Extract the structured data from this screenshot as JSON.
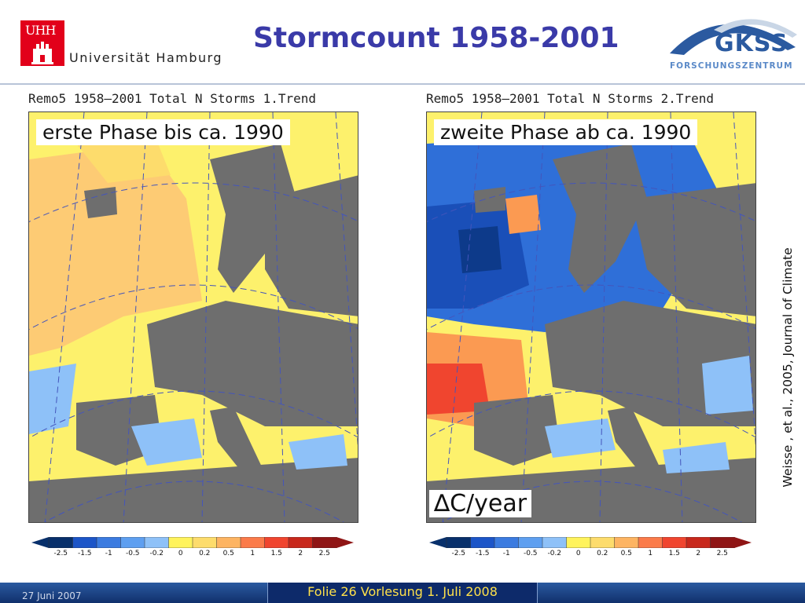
{
  "header": {
    "title": "Stormcount 1958-2001",
    "university": {
      "logo_text": "UHH",
      "name": "Universität Hamburg"
    },
    "institute": {
      "name": "GKSS",
      "subtitle": "FORSCHUNGSZENTRUM"
    }
  },
  "panels": [
    {
      "caption": "Remo5 1958—2001 Total N Storms 1.Trend",
      "phase_label": "erste Phase bis ca. 1990",
      "overlay_label": "",
      "trend_level": "positive"
    },
    {
      "caption": "Remo5 1958—2001 Total N Storms 2.Trend",
      "phase_label": "zweite Phase ab ca. 1990",
      "overlay_label": "∆C/year",
      "trend_level": "negative"
    }
  ],
  "colorbar": {
    "ticks": [
      "-2.5",
      "-1.5",
      "-1",
      "-0.5",
      "-0.2",
      "0",
      "0.2",
      "0.5",
      "1",
      "1.5",
      "2",
      "2.5"
    ],
    "colors": [
      "#08306b",
      "#1c55c8",
      "#3b7be0",
      "#5e9ff0",
      "#8ec1f8",
      "#fff35c",
      "#fddc6c",
      "#fdb462",
      "#fb7b4a",
      "#f0452f",
      "#c8281c",
      "#8f1515"
    ]
  },
  "colors": {
    "land": "#6e6e6e",
    "neutral_fill": "#ffffff",
    "graticule": "#4455bb",
    "title": "#3a3aa8",
    "footer_text": "#ffe14a"
  },
  "citation": "Weisse , et al., 2005, Journal of Climate",
  "footer": {
    "date": "27 Juni 2007",
    "label": "Folie 26 Vorlesung 1. Juli 2008"
  }
}
